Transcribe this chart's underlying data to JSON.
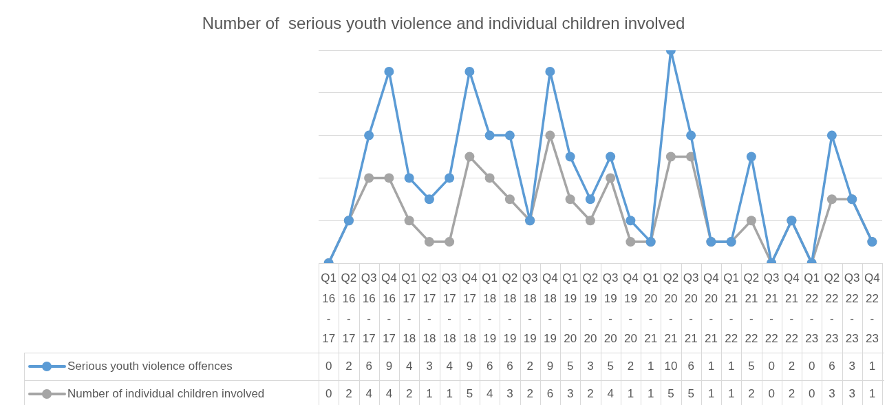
{
  "chart_data": {
    "type": "line",
    "title": "Number of  serious youth violence and individual children involved",
    "categories": [
      "Q1 16-17",
      "Q2 16-17",
      "Q3 16-17",
      "Q4 16-17",
      "Q1 17-18",
      "Q2 17-18",
      "Q3 17-18",
      "Q4 17-18",
      "Q1 18-19",
      "Q2 18-19",
      "Q3 18-19",
      "Q4 18-19",
      "Q1 19-20",
      "Q2 19-20",
      "Q3 19-20",
      "Q4 19-20",
      "Q1 20-21",
      "Q2 20-21",
      "Q3 20-21",
      "Q4 20-21",
      "Q1 21-22",
      "Q2 21-22",
      "Q3 21-22",
      "Q4 21-22",
      "Q1 22-23",
      "Q2 22-23",
      "Q3 22-23",
      "Q4 22-23"
    ],
    "series": [
      {
        "name": "Serious youth violence offences",
        "color": "#5b9bd5",
        "values": [
          0,
          2,
          6,
          9,
          4,
          3,
          4,
          9,
          6,
          6,
          2,
          9,
          5,
          3,
          5,
          2,
          1,
          10,
          6,
          1,
          1,
          5,
          0,
          2,
          0,
          6,
          3,
          1
        ]
      },
      {
        "name": "Number of individual children involved",
        "color": "#a5a5a5",
        "values": [
          0,
          2,
          4,
          4,
          2,
          1,
          1,
          5,
          4,
          3,
          2,
          6,
          3,
          2,
          4,
          1,
          1,
          5,
          5,
          1,
          1,
          2,
          0,
          2,
          0,
          3,
          3,
          1
        ]
      }
    ],
    "ylim": [
      0,
      10
    ],
    "yticks": [
      {
        "value": 0,
        "label": null
      },
      {
        "value": 2,
        "label": null
      },
      {
        "value": 4,
        "label": null
      },
      {
        "value": 6,
        "label": null
      },
      {
        "value": 8,
        "label": null
      },
      {
        "value": 10,
        "label": null
      }
    ],
    "tick_labels": "x",
    "grid": "y",
    "legend": "bottom",
    "marker": "circle",
    "line_style": "solid",
    "data_labels": true
  }
}
